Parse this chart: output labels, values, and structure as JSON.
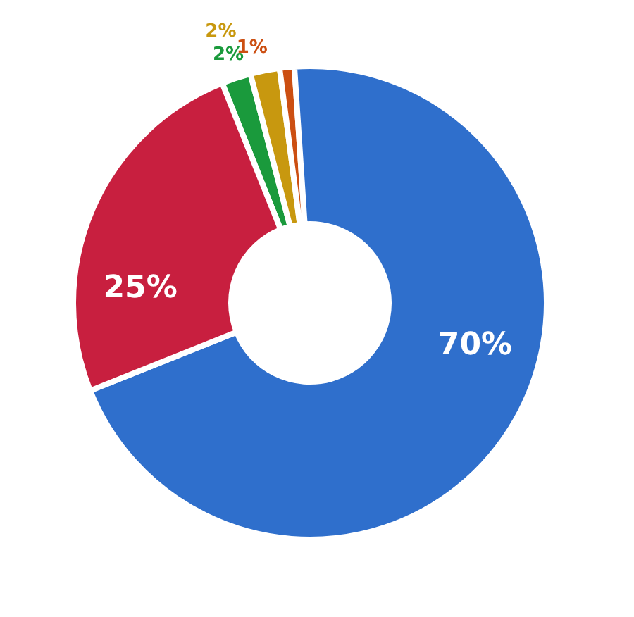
{
  "chart_data": {
    "type": "donut",
    "categories": [
      null,
      null,
      null,
      null,
      null
    ],
    "values": [
      2,
      2,
      1,
      70,
      25
    ],
    "colors": [
      "#1a9a3c",
      "#c8980f",
      "#cc4f12",
      "#2f6fcc",
      "#c81f3f"
    ],
    "value_labels": [
      "2%",
      "2%",
      "1%",
      "70%",
      "25%"
    ]
  }
}
